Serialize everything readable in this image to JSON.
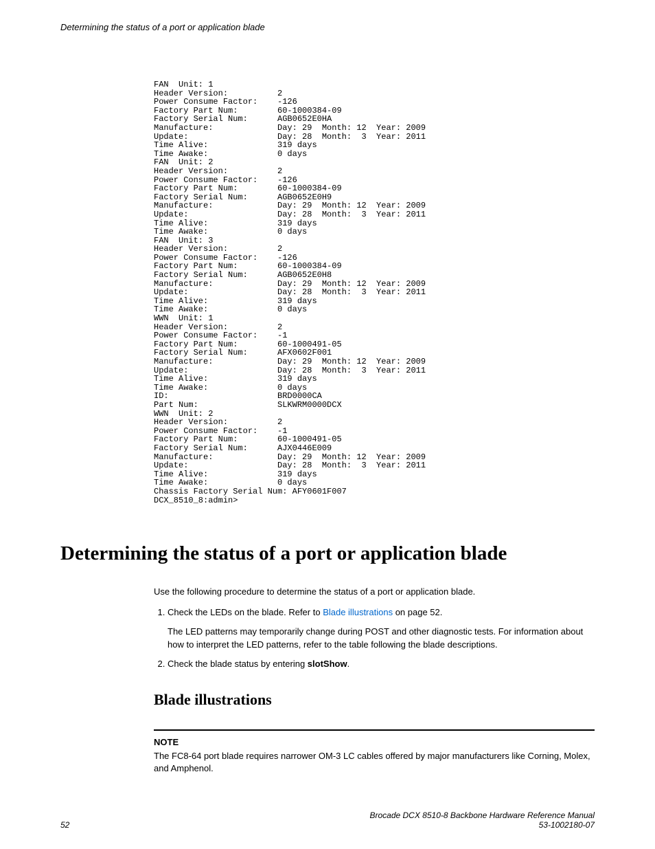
{
  "runningHead": "Determining the status of a port or application blade",
  "codeDump": "FAN  Unit: 1\nHeader Version:          2\nPower Consume Factor:    -126\nFactory Part Num:        60-1000384-09\nFactory Serial Num:      AGB0652E0HA\nManufacture:             Day: 29  Month: 12  Year: 2009\nUpdate:                  Day: 28  Month:  3  Year: 2011\nTime Alive:              319 days\nTime Awake:              0 days\nFAN  Unit: 2\nHeader Version:          2\nPower Consume Factor:    -126\nFactory Part Num:        60-1000384-09\nFactory Serial Num:      AGB0652E0H9\nManufacture:             Day: 29  Month: 12  Year: 2009\nUpdate:                  Day: 28  Month:  3  Year: 2011\nTime Alive:              319 days\nTime Awake:              0 days\nFAN  Unit: 3\nHeader Version:          2\nPower Consume Factor:    -126\nFactory Part Num:        60-1000384-09\nFactory Serial Num:      AGB0652E0H8\nManufacture:             Day: 29  Month: 12  Year: 2009\nUpdate:                  Day: 28  Month:  3  Year: 2011\nTime Alive:              319 days\nTime Awake:              0 days\nWWN  Unit: 1\nHeader Version:          2\nPower Consume Factor:    -1\nFactory Part Num:        60-1000491-05\nFactory Serial Num:      AFX0602F001\nManufacture:             Day: 29  Month: 12  Year: 2009\nUpdate:                  Day: 28  Month:  3  Year: 2011\nTime Alive:              319 days\nTime Awake:              0 days\nID:                      BRD0000CA\nPart Num:                SLKWRM0000DCX\nWWN  Unit: 2\nHeader Version:          2\nPower Consume Factor:    -1\nFactory Part Num:        60-1000491-05\nFactory Serial Num:      AJX0446E009\nManufacture:             Day: 29  Month: 12  Year: 2009\nUpdate:                  Day: 28  Month:  3  Year: 2011\nTime Alive:              319 days\nTime Awake:              0 days\nChassis Factory Serial Num: AFY0601F007\nDCX_8510_8:admin>",
  "section": {
    "title": "Determining the status of a port or application blade",
    "intro": "Use the following procedure to determine the status of a port or application blade.",
    "steps": [
      {
        "pre": "Check the LEDs on the blade. Refer to ",
        "link": "Blade illustrations",
        "post": " on page 52.",
        "sub": "The LED patterns may temporarily change during POST and other diagnostic tests. For information about how to interpret the LED patterns, refer to the table following the blade descriptions."
      },
      {
        "pre": "Check the blade status by entering ",
        "command": "slotShow",
        "post": "."
      }
    ]
  },
  "subsection": {
    "title": "Blade illustrations",
    "note": {
      "label": "NOTE",
      "text": "The FC8-64 port blade requires narrower OM-3 LC cables offered by major manufacturers like Corning, Molex, and Amphenol."
    }
  },
  "footer": {
    "pageNum": "52",
    "manualTitle": "Brocade DCX 8510-8 Backbone Hardware Reference Manual",
    "docNum": "53-1002180-07"
  }
}
